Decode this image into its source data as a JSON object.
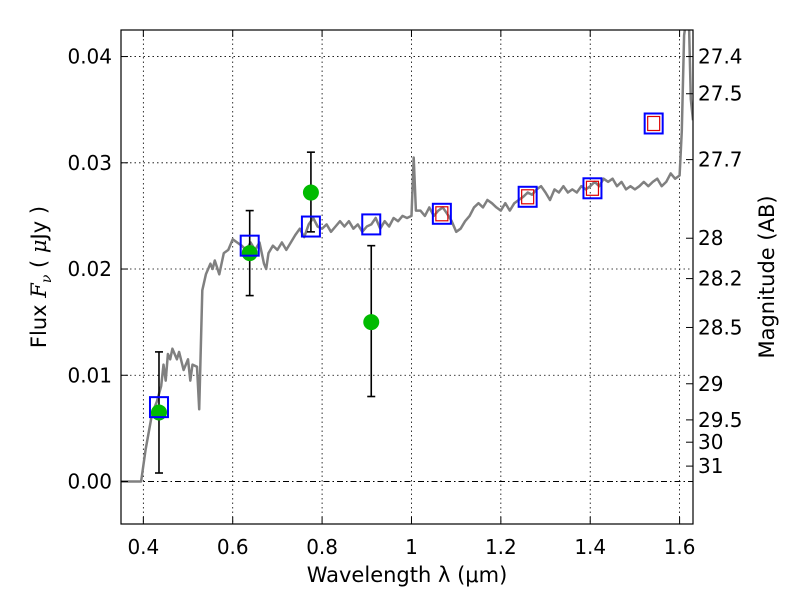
{
  "chart_data": {
    "type": "scatter",
    "xlabel": "Wavelength  λ (μm)",
    "ylabel_left": {
      "prefix": "Flux  ",
      "symbol": "F",
      "subscript": "ν",
      "mid": "  ( ",
      "unit_symbol": "μ",
      "suffix": "Jy )"
    },
    "ylabel_right": "Magnitude (AB)",
    "xlim": [
      0.35,
      1.63
    ],
    "ylim": [
      -0.004,
      0.0425
    ],
    "grid": true,
    "x_ticks": [
      {
        "value": 0.4,
        "label": "0.4"
      },
      {
        "value": 0.6,
        "label": "0.6"
      },
      {
        "value": 0.8,
        "label": "0.8"
      },
      {
        "value": 1.0,
        "label": "1"
      },
      {
        "value": 1.2,
        "label": "1.2"
      },
      {
        "value": 1.4,
        "label": "1.4"
      },
      {
        "value": 1.6,
        "label": "1.6"
      }
    ],
    "y_ticks": [
      {
        "value": 0.0,
        "label": "0.00"
      },
      {
        "value": 0.01,
        "label": "0.01"
      },
      {
        "value": 0.02,
        "label": "0.02"
      },
      {
        "value": 0.03,
        "label": "0.03"
      },
      {
        "value": 0.04,
        "label": "0.04"
      }
    ],
    "right_ticks": [
      {
        "label": "27.4",
        "flux": 0.04
      },
      {
        "label": "27.5",
        "flux": 0.0365
      },
      {
        "label": "27.7",
        "flux": 0.0303
      },
      {
        "label": "28",
        "flux": 0.0229
      },
      {
        "label": "28.2",
        "flux": 0.0191
      },
      {
        "label": "28.5",
        "flux": 0.0145
      },
      {
        "label": "29",
        "flux": 0.0092
      },
      {
        "label": "29.5",
        "flux": 0.0058
      },
      {
        "label": "30",
        "flux": 0.0037
      },
      {
        "label": "31",
        "flux": 0.00145
      }
    ],
    "series": [
      {
        "style": "line",
        "color": "#808080",
        "points": [
          [
            0.35,
            0.0
          ],
          [
            0.395,
            0.0
          ],
          [
            0.405,
            0.003
          ],
          [
            0.42,
            0.0065
          ],
          [
            0.43,
            0.0075
          ],
          [
            0.44,
            0.009
          ],
          [
            0.445,
            0.011
          ],
          [
            0.45,
            0.0095
          ],
          [
            0.455,
            0.012
          ],
          [
            0.46,
            0.0115
          ],
          [
            0.465,
            0.0125
          ],
          [
            0.475,
            0.0115
          ],
          [
            0.48,
            0.0122
          ],
          [
            0.49,
            0.0105
          ],
          [
            0.5,
            0.0115
          ],
          [
            0.505,
            0.0095
          ],
          [
            0.51,
            0.011
          ],
          [
            0.52,
            0.0108
          ],
          [
            0.525,
            0.0068
          ],
          [
            0.532,
            0.018
          ],
          [
            0.54,
            0.0195
          ],
          [
            0.55,
            0.0205
          ],
          [
            0.555,
            0.02
          ],
          [
            0.56,
            0.0208
          ],
          [
            0.57,
            0.0195
          ],
          [
            0.58,
            0.0215
          ],
          [
            0.59,
            0.0218
          ],
          [
            0.6,
            0.0228
          ],
          [
            0.61,
            0.0225
          ],
          [
            0.62,
            0.0222
          ],
          [
            0.63,
            0.0218
          ],
          [
            0.64,
            0.0225
          ],
          [
            0.65,
            0.0218
          ],
          [
            0.66,
            0.0225
          ],
          [
            0.67,
            0.0205
          ],
          [
            0.675,
            0.02
          ],
          [
            0.68,
            0.0215
          ],
          [
            0.69,
            0.0222
          ],
          [
            0.7,
            0.0218
          ],
          [
            0.71,
            0.0225
          ],
          [
            0.72,
            0.0218
          ],
          [
            0.73,
            0.0225
          ],
          [
            0.74,
            0.0232
          ],
          [
            0.75,
            0.0238
          ],
          [
            0.76,
            0.023
          ],
          [
            0.77,
            0.0242
          ],
          [
            0.78,
            0.0248
          ],
          [
            0.79,
            0.024
          ],
          [
            0.8,
            0.0238
          ],
          [
            0.81,
            0.0242
          ],
          [
            0.82,
            0.0235
          ],
          [
            0.83,
            0.024
          ],
          [
            0.84,
            0.0245
          ],
          [
            0.85,
            0.024
          ],
          [
            0.86,
            0.0245
          ],
          [
            0.87,
            0.0238
          ],
          [
            0.88,
            0.0242
          ],
          [
            0.89,
            0.0235
          ],
          [
            0.9,
            0.024
          ],
          [
            0.91,
            0.0242
          ],
          [
            0.92,
            0.0248
          ],
          [
            0.93,
            0.0238
          ],
          [
            0.94,
            0.0245
          ],
          [
            0.95,
            0.024
          ],
          [
            0.96,
            0.0248
          ],
          [
            0.97,
            0.0245
          ],
          [
            0.98,
            0.025
          ],
          [
            0.99,
            0.0248
          ],
          [
            1.0,
            0.025
          ],
          [
            1.005,
            0.0305
          ],
          [
            1.01,
            0.0255
          ],
          [
            1.02,
            0.0255
          ],
          [
            1.03,
            0.025
          ],
          [
            1.04,
            0.0258
          ],
          [
            1.05,
            0.025
          ],
          [
            1.06,
            0.0255
          ],
          [
            1.07,
            0.0258
          ],
          [
            1.08,
            0.0252
          ],
          [
            1.09,
            0.0245
          ],
          [
            1.1,
            0.0235
          ],
          [
            1.11,
            0.0238
          ],
          [
            1.12,
            0.0245
          ],
          [
            1.13,
            0.025
          ],
          [
            1.14,
            0.0258
          ],
          [
            1.15,
            0.0262
          ],
          [
            1.16,
            0.0258
          ],
          [
            1.17,
            0.0265
          ],
          [
            1.18,
            0.0262
          ],
          [
            1.19,
            0.0258
          ],
          [
            1.2,
            0.0255
          ],
          [
            1.21,
            0.0262
          ],
          [
            1.22,
            0.0255
          ],
          [
            1.23,
            0.0262
          ],
          [
            1.24,
            0.0265
          ],
          [
            1.25,
            0.0268
          ],
          [
            1.26,
            0.0272
          ],
          [
            1.27,
            0.027
          ],
          [
            1.28,
            0.0275
          ],
          [
            1.29,
            0.0278
          ],
          [
            1.3,
            0.0272
          ],
          [
            1.31,
            0.0265
          ],
          [
            1.32,
            0.0275
          ],
          [
            1.33,
            0.0272
          ],
          [
            1.34,
            0.0278
          ],
          [
            1.35,
            0.0272
          ],
          [
            1.36,
            0.0275
          ],
          [
            1.37,
            0.0272
          ],
          [
            1.38,
            0.0278
          ],
          [
            1.39,
            0.0275
          ],
          [
            1.4,
            0.0278
          ],
          [
            1.41,
            0.0282
          ],
          [
            1.42,
            0.0278
          ],
          [
            1.43,
            0.0285
          ],
          [
            1.44,
            0.0282
          ],
          [
            1.45,
            0.0285
          ],
          [
            1.46,
            0.0278
          ],
          [
            1.47,
            0.0282
          ],
          [
            1.48,
            0.0275
          ],
          [
            1.49,
            0.0278
          ],
          [
            1.5,
            0.0275
          ],
          [
            1.51,
            0.0278
          ],
          [
            1.52,
            0.0282
          ],
          [
            1.53,
            0.0278
          ],
          [
            1.54,
            0.0282
          ],
          [
            1.55,
            0.0285
          ],
          [
            1.56,
            0.0278
          ],
          [
            1.57,
            0.0282
          ],
          [
            1.58,
            0.029
          ],
          [
            1.59,
            0.0285
          ],
          [
            1.6,
            0.0288
          ],
          [
            1.605,
            0.033
          ],
          [
            1.61,
            0.042
          ],
          [
            1.62,
            0.045
          ],
          [
            1.625,
            0.036
          ],
          [
            1.63,
            0.034
          ]
        ]
      },
      {
        "style": "circle-errorbar",
        "color": "#00bb00",
        "points": [
          {
            "x": 0.435,
            "y": 0.0065,
            "ylow": 0.0008,
            "yhigh": 0.0122
          },
          {
            "x": 0.638,
            "y": 0.0215,
            "ylow": 0.0175,
            "yhigh": 0.0255
          },
          {
            "x": 0.775,
            "y": 0.0272,
            "ylow": 0.0235,
            "yhigh": 0.031
          },
          {
            "x": 0.91,
            "y": 0.015,
            "ylow": 0.008,
            "yhigh": 0.0222
          }
        ]
      },
      {
        "style": "blue-square",
        "color": "#0000ff",
        "points": [
          {
            "x": 0.435,
            "y": 0.007
          },
          {
            "x": 0.638,
            "y": 0.0222
          },
          {
            "x": 0.775,
            "y": 0.024
          },
          {
            "x": 0.91,
            "y": 0.0242
          },
          {
            "x": 1.068,
            "y": 0.0252
          },
          {
            "x": 1.26,
            "y": 0.0268
          },
          {
            "x": 1.405,
            "y": 0.0276
          },
          {
            "x": 1.542,
            "y": 0.0337
          }
        ]
      },
      {
        "style": "red-square",
        "color": "#dd0000",
        "points": [
          {
            "x": 1.068,
            "y": 0.0252
          },
          {
            "x": 1.26,
            "y": 0.0268
          },
          {
            "x": 1.405,
            "y": 0.0276
          },
          {
            "x": 1.542,
            "y": 0.0337
          }
        ]
      }
    ]
  }
}
